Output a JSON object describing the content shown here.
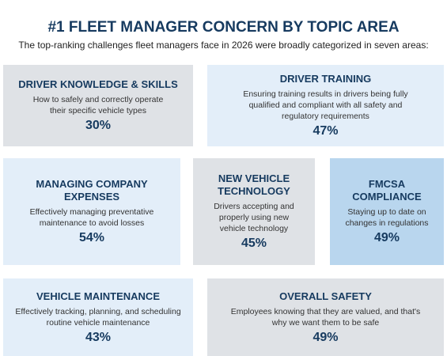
{
  "header": {
    "title": "#1 FLEET MANAGER CONCERN BY TOPIC AREA",
    "subtitle": "The top-ranking challenges fleet managers face in 2026 were broadly categorized in seven areas:"
  },
  "topics": [
    {
      "heading": "DRIVER KNOWLEDGE & SKILLS",
      "description": "How to safely and correctly operate their specific vehicle types",
      "percent": "30%"
    },
    {
      "heading": "DRIVER TRAINING",
      "description": "Ensuring training results in drivers being fully qualified and compliant with all safety and regulatory requirements",
      "percent": "47%"
    },
    {
      "heading": "MANAGING COMPANY EXPENSES",
      "description": "Effectively managing preventative maintenance to avoid losses",
      "percent": "54%"
    },
    {
      "heading": "NEW VEHICLE TECHNOLOGY",
      "description": "Drivers accepting and properly using new vehicle technology",
      "percent": "45%"
    },
    {
      "heading": "FMCSA COMPLIANCE",
      "description": "Staying up to date on changes in regulations",
      "percent": "49%"
    },
    {
      "heading": "VEHICLE MAINTENANCE",
      "description": "Effectively tracking, planning, and scheduling routine vehicle maintenance",
      "percent": "43%"
    },
    {
      "heading": "OVERALL SAFETY",
      "description": "Employees knowing that they are valued, and that's why we want them to be safe",
      "percent": "49%"
    }
  ]
}
